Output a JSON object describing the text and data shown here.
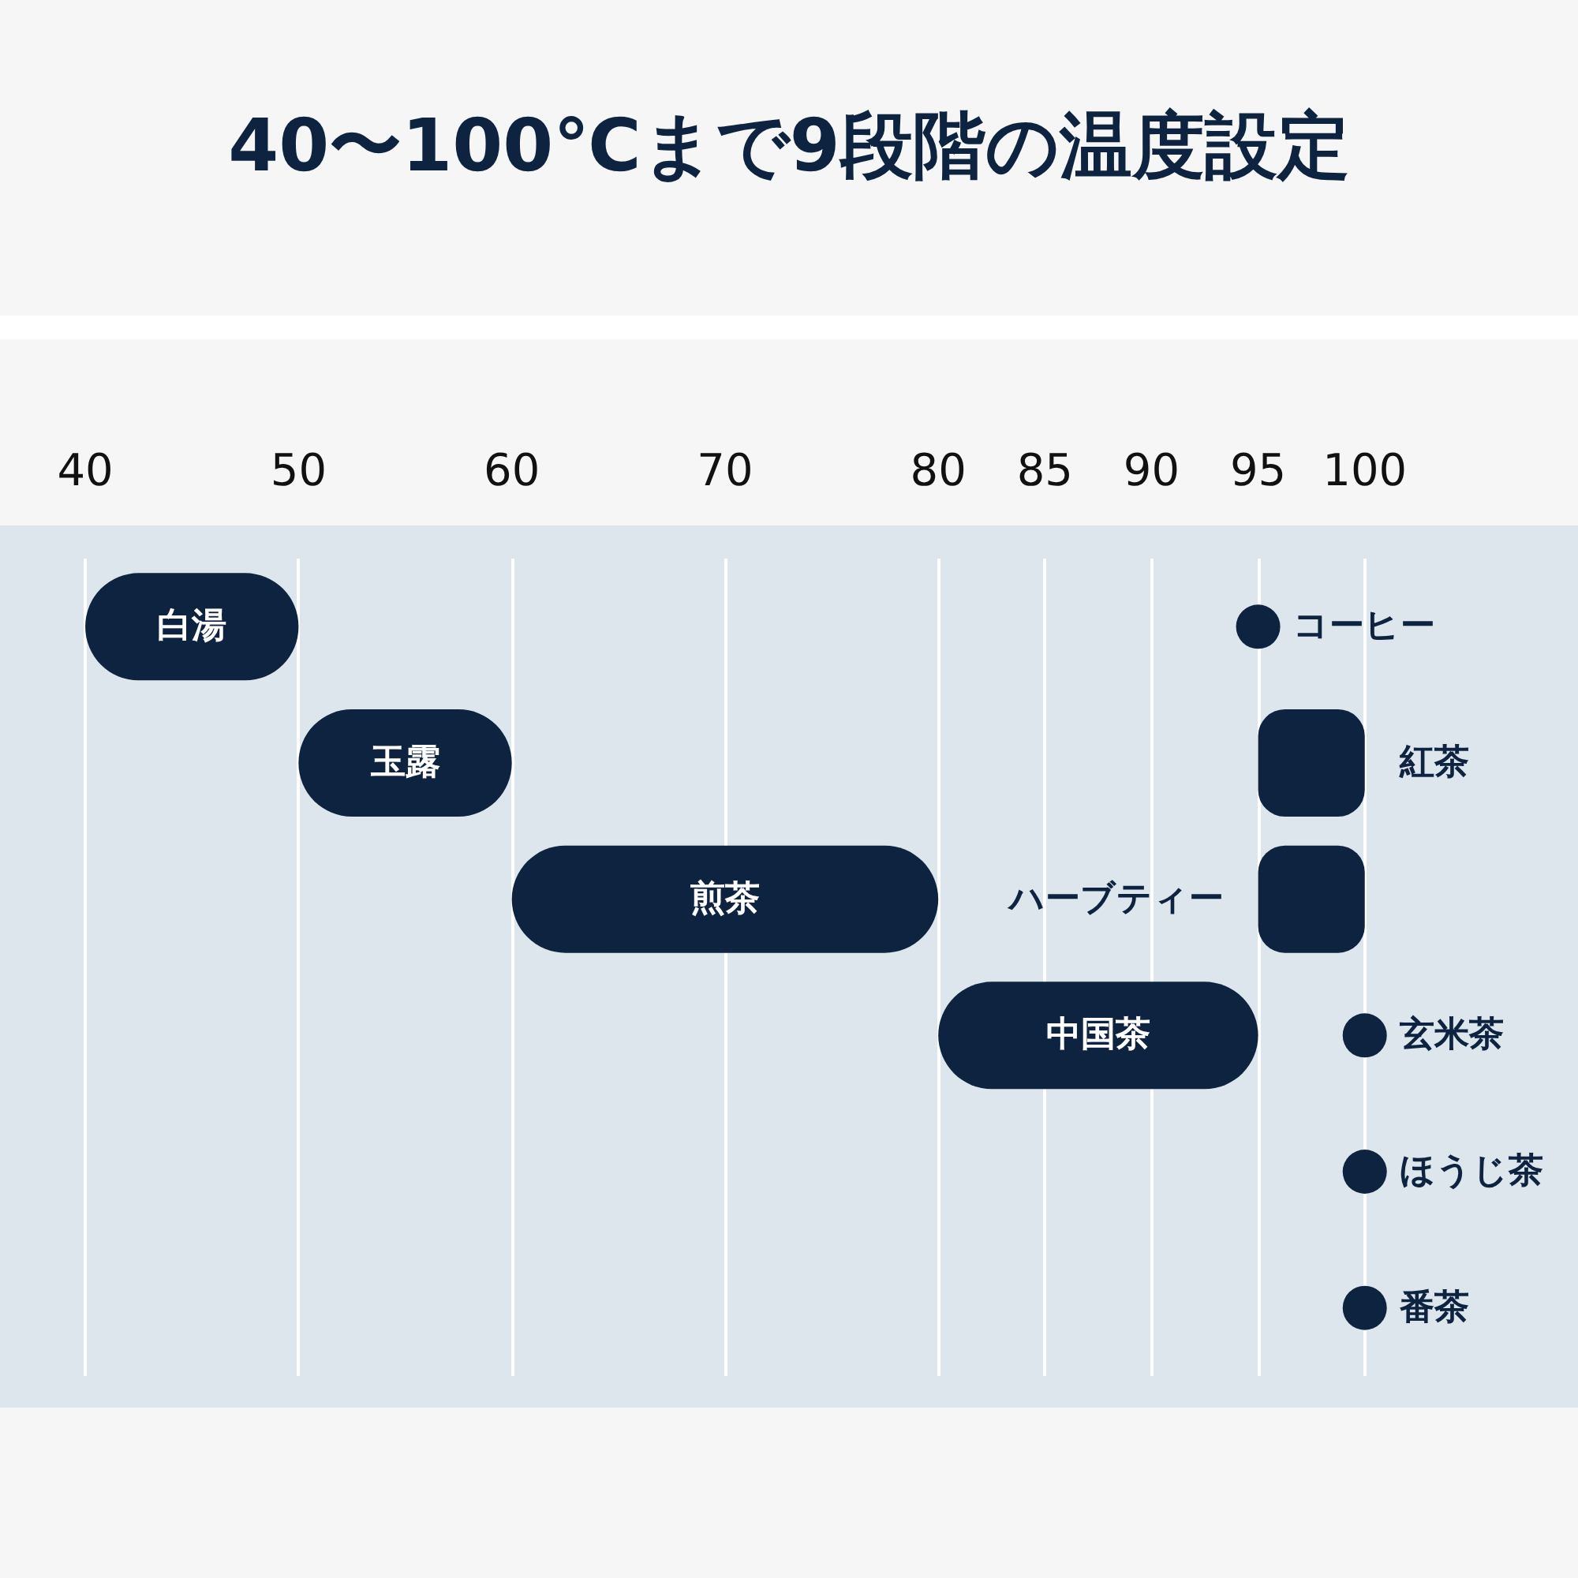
{
  "chart_data": {
    "type": "bar",
    "orientation": "horizontal",
    "title": "40〜100℃まで9段階の温度設定",
    "categories": [
      null,
      null,
      null,
      null,
      null,
      null
    ],
    "series": [
      {
        "color": "#0e2340",
        "base": [
          40,
          50,
          60,
          80,
          null,
          null
        ],
        "values": [
          10,
          10,
          20,
          15,
          null,
          null
        ],
        "value_labels": [
          "白湯",
          "玉露",
          "煎茶",
          "中国茶",
          null,
          null
        ]
      },
      {
        "color": "#0e2340",
        "base": [
          null,
          95,
          95,
          null,
          null,
          null
        ],
        "values": [
          null,
          5,
          5,
          null,
          null,
          null
        ],
        "value_labels": [
          null,
          "紅茶",
          "ハーブティー",
          null,
          null,
          null
        ]
      },
      {
        "type": "scatter",
        "color": "#0e2340",
        "values": [
          95,
          null,
          null,
          100,
          100,
          100
        ],
        "value_labels": [
          "コーヒー",
          null,
          null,
          "玄米茶",
          "ほうじ茶",
          "番茶"
        ]
      }
    ],
    "marker": "circle",
    "xlim": [
      36,
      110
    ],
    "xticks": [
      40,
      50,
      60,
      70,
      80,
      85,
      90,
      95,
      100
    ],
    "grid": "x"
  }
}
